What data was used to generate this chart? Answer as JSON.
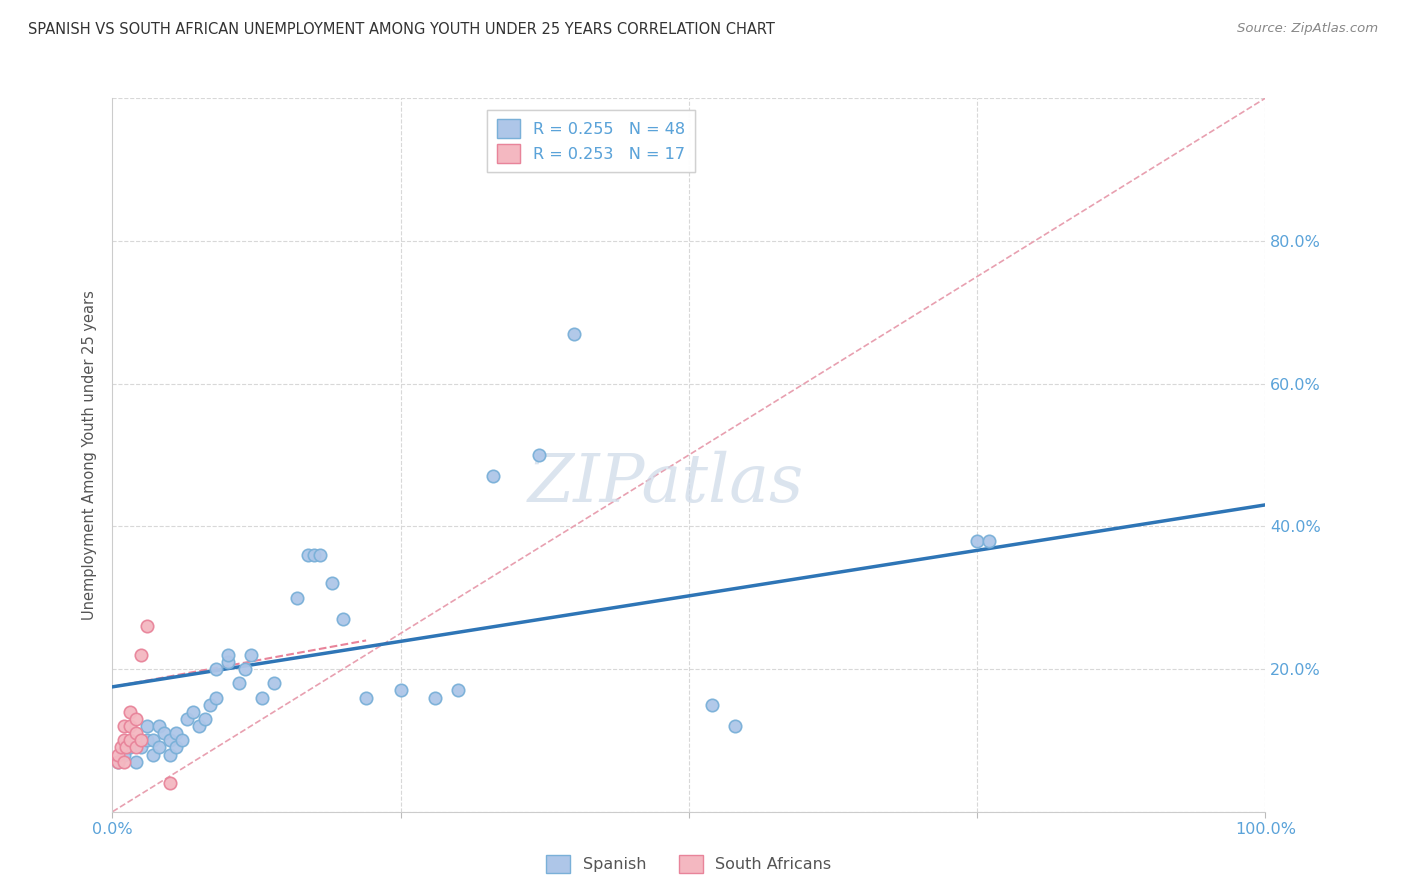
{
  "title": "SPANISH VS SOUTH AFRICAN UNEMPLOYMENT AMONG YOUTH UNDER 25 YEARS CORRELATION CHART",
  "source": "Source: ZipAtlas.com",
  "ylabel": "Unemployment Among Youth under 25 years",
  "xlim": [
    0,
    1.0
  ],
  "ylim": [
    0,
    1.0
  ],
  "xticks": [
    0.0,
    0.25,
    0.5,
    0.75,
    1.0
  ],
  "xtick_labels": [
    "0.0%",
    "",
    "",
    "",
    "100.0%"
  ],
  "ytick_values": [
    0.0,
    0.2,
    0.4,
    0.6,
    0.8
  ],
  "ytick_labels_right": [
    "",
    "20.0%",
    "40.0%",
    "60.0%",
    "80.0%"
  ],
  "watermark": "ZIPatlas",
  "legend_entries": [
    {
      "label": "R = 0.255   N = 48",
      "color": "#aec6e8",
      "edge": "#7ab0d8"
    },
    {
      "label": "R = 0.253   N = 17",
      "color": "#f4b8c1",
      "edge": "#e8849a"
    }
  ],
  "legend_bottom": [
    {
      "label": "Spanish",
      "color": "#aec6e8",
      "edge": "#7ab0d8"
    },
    {
      "label": "South Africans",
      "color": "#f4b8c1",
      "edge": "#e8849a"
    }
  ],
  "spanish_x": [
    0.005,
    0.01,
    0.015,
    0.02,
    0.025,
    0.03,
    0.03,
    0.035,
    0.035,
    0.04,
    0.04,
    0.045,
    0.05,
    0.05,
    0.055,
    0.055,
    0.06,
    0.065,
    0.07,
    0.075,
    0.08,
    0.085,
    0.09,
    0.09,
    0.1,
    0.1,
    0.11,
    0.115,
    0.12,
    0.13,
    0.14,
    0.16,
    0.17,
    0.175,
    0.18,
    0.19,
    0.2,
    0.22,
    0.25,
    0.28,
    0.3,
    0.33,
    0.37,
    0.4,
    0.52,
    0.54,
    0.75,
    0.76
  ],
  "spanish_y": [
    0.07,
    0.08,
    0.09,
    0.07,
    0.09,
    0.1,
    0.12,
    0.08,
    0.1,
    0.09,
    0.12,
    0.11,
    0.08,
    0.1,
    0.09,
    0.11,
    0.1,
    0.13,
    0.14,
    0.12,
    0.13,
    0.15,
    0.16,
    0.2,
    0.21,
    0.22,
    0.18,
    0.2,
    0.22,
    0.16,
    0.18,
    0.3,
    0.36,
    0.36,
    0.36,
    0.32,
    0.27,
    0.16,
    0.17,
    0.16,
    0.17,
    0.47,
    0.5,
    0.67,
    0.15,
    0.12,
    0.38,
    0.38
  ],
  "sa_x": [
    0.005,
    0.005,
    0.007,
    0.01,
    0.01,
    0.01,
    0.012,
    0.015,
    0.015,
    0.015,
    0.02,
    0.02,
    0.02,
    0.025,
    0.025,
    0.03,
    0.05
  ],
  "sa_y": [
    0.07,
    0.08,
    0.09,
    0.07,
    0.1,
    0.12,
    0.09,
    0.1,
    0.12,
    0.14,
    0.09,
    0.11,
    0.13,
    0.1,
    0.22,
    0.26,
    0.04
  ],
  "spanish_line_x": [
    0.0,
    1.0
  ],
  "spanish_line_y": [
    0.175,
    0.43
  ],
  "sa_line_x": [
    0.0,
    0.22
  ],
  "sa_line_y": [
    0.175,
    0.24
  ],
  "diagonal_line_x": [
    0.0,
    1.0
  ],
  "diagonal_line_y": [
    0.0,
    1.0
  ],
  "spanish_color_edge": "#7ab0d8",
  "spanish_color_fill": "#aec6e8",
  "sa_color_edge": "#e8849a",
  "sa_color_fill": "#f4b8c1",
  "line_color_spanish": "#2e75b6",
  "line_color_sa": "#e8849a",
  "diagonal_color": "#e8a0b0",
  "marker_size": 80,
  "axis_color": "#5ba3d9",
  "watermark_color": "#cdd9e8",
  "grid_color": "#d8d8d8",
  "title_color": "#333333",
  "source_color": "#888888"
}
